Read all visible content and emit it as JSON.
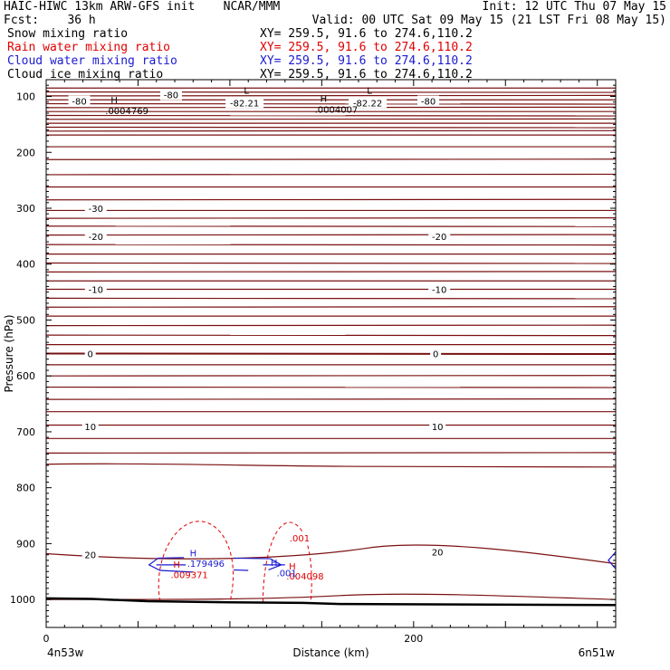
{
  "header": {
    "model_line": "HAIC-HIWC 13km ARW-GFS init    NCAR/MMM",
    "init_line": "Init: 12 UTC Thu 07 May 15",
    "fcst_line": "Fcst:    36 h",
    "valid_line": "Valid: 00 UTC Sat 09 May 15 (21 LST Fri 08 May 15)",
    "fields": [
      {
        "name": "Snow mixing ratio",
        "xy": "XY= 259.5, 91.6 to 274.6,110.2",
        "color": "#000000"
      },
      {
        "name": "Rain water mixing ratio",
        "xy": "XY= 259.5, 91.6 to 274.6,110.2",
        "color": "#e00000"
      },
      {
        "name": "Cloud water mixing ratio",
        "xy": "XY= 259.5, 91.6 to 274.6,110.2",
        "color": "#1a1ad0"
      },
      {
        "name": "Cloud ice mixing ratio",
        "xy": "XY= 259.5, 91.6 to 274.6,110.2",
        "color": "#000000"
      }
    ]
  },
  "chart_data": {
    "type": "line",
    "ylabel": "Pressure (hPa)",
    "xlabel": "Distance (km)",
    "x_ticks": [
      0,
      200
    ],
    "y_ticks": [
      100,
      200,
      300,
      400,
      500,
      600,
      700,
      800,
      900,
      1000
    ],
    "xlim": [
      0,
      310
    ],
    "ylim": [
      1050,
      70
    ],
    "corner_labels": {
      "left": "4n53w",
      "right": "6n51w"
    },
    "temperature_contours": [
      {
        "label": "-80",
        "pressure": 105
      },
      {
        "label": "-30",
        "pressure": 300
      },
      {
        "label": "-20",
        "pressure": 350
      },
      {
        "label": "-10",
        "pressure": 445
      },
      {
        "label": "0",
        "pressure": 560
      },
      {
        "label": "10",
        "pressure": 690
      },
      {
        "label": "20",
        "pressure": 920
      }
    ],
    "extrema_labels": [
      {
        "text": "L",
        "value": "-82.21",
        "x": 108,
        "pressure": 108
      },
      {
        "text": "L",
        "value": "-82.22",
        "x": 175,
        "pressure": 108
      },
      {
        "text": "H",
        "value": ".0004769",
        "x": 39,
        "pressure": 125
      },
      {
        "text": "H",
        "value": ".0004007",
        "x": 153,
        "pressure": 123
      },
      {
        "text": "H",
        "value": ".009371",
        "x": 73,
        "pressure": 955
      },
      {
        "text": "H",
        "value": ".004098",
        "x": 136,
        "pressure": 958
      },
      {
        "text": "H",
        "value": ".179496",
        "x": 82,
        "pressure": 935
      },
      {
        "text": "H",
        "value": ".001",
        "x": 126,
        "pressure": 952
      }
    ],
    "rain_contour_label": ".001",
    "colors": {
      "temperature": "#7a1010",
      "rain": "#e00000",
      "cloud_water": "#1a1ad0",
      "terrain": "#000000"
    }
  }
}
